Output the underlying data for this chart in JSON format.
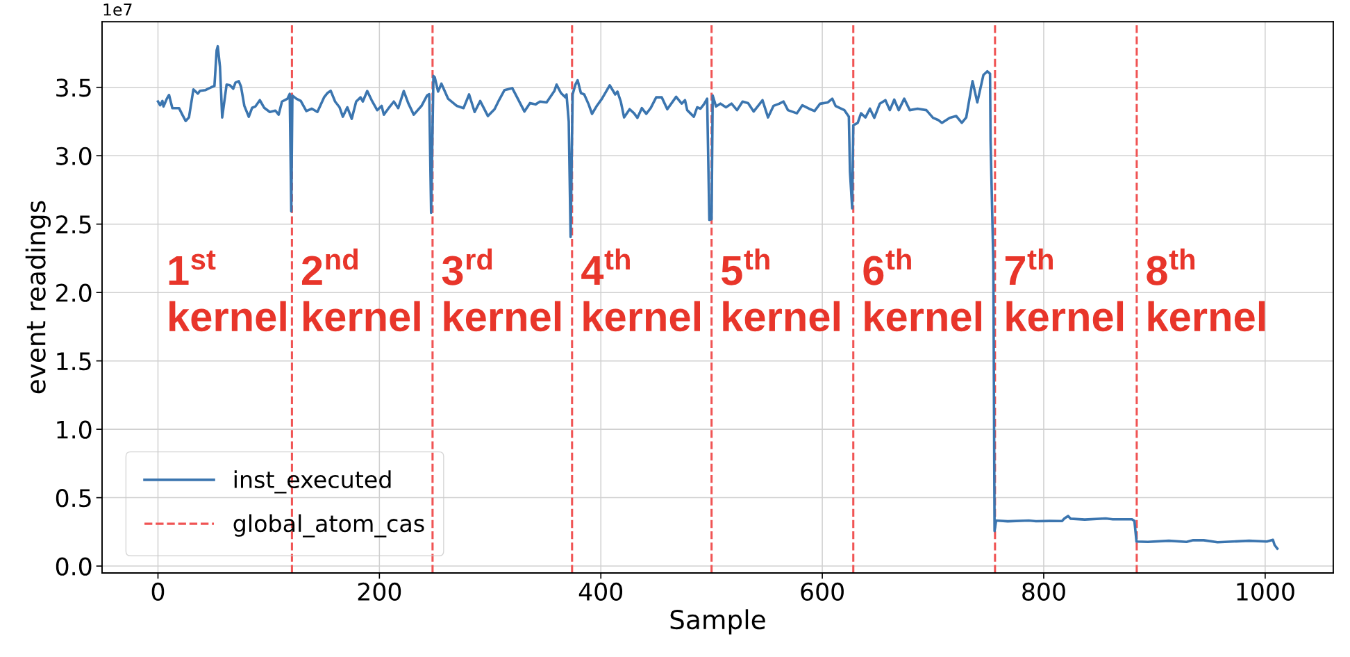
{
  "chart_data": {
    "type": "line",
    "xlabel": "Sample",
    "ylabel": "event readings",
    "xlim": [
      -50.5,
      1061.5
    ],
    "ylim": [
      -0.05,
      3.98
    ],
    "xticks": [
      0,
      200,
      400,
      600,
      800,
      1000
    ],
    "yticks": [
      {
        "value": 0,
        "label": "0.0"
      },
      0.5,
      {
        "value": 1,
        "label": "1.0"
      },
      1.5,
      {
        "value": 2,
        "label": "2.0"
      },
      2.5,
      {
        "value": 3,
        "label": "3.0"
      },
      3.5
    ],
    "grid": true,
    "legend": "bottom left",
    "line_style": "solid",
    "marker": "none",
    "series": [
      {
        "name": "inst_executed",
        "color": "#3b75af",
        "x": [
          0,
          2,
          4,
          5,
          8,
          10,
          13,
          19,
          22,
          25,
          28,
          32,
          36,
          38,
          43,
          48,
          51,
          53,
          54,
          56,
          58,
          62,
          65,
          68,
          70,
          73,
          75,
          78,
          82,
          85,
          88,
          92,
          96,
          101,
          106,
          109,
          112,
          117,
          119,
          120.4,
          121.4,
          125,
          129,
          134,
          139,
          144,
          150,
          153,
          156,
          160,
          164,
          167,
          171,
          175,
          179,
          183,
          185,
          189,
          193,
          198,
          202,
          204,
          208,
          213,
          217,
          222,
          226,
          231,
          238,
          243,
          245,
          246.7,
          248.8,
          250,
          253,
          256,
          262,
          270,
          276,
          281,
          286,
          291,
          298,
          304,
          308,
          313,
          320,
          325,
          331,
          336,
          341,
          345,
          351,
          358,
          360,
          364,
          368,
          369,
          371,
          372.7,
          374.5,
          377,
          379,
          382,
          385,
          389,
          392,
          396,
          401,
          408,
          413,
          415,
          418,
          421,
          426,
          430,
          433,
          437,
          441,
          445,
          450,
          455,
          460,
          468,
          473,
          476,
          478,
          484,
          487,
          490,
          493,
          496,
          498,
          500,
          501,
          504,
          508,
          513,
          518,
          523,
          528,
          533,
          538,
          546,
          551,
          556,
          561,
          565,
          569,
          577,
          582,
          588,
          593,
          598,
          605,
          609,
          612,
          616,
          620,
          624,
          625,
          627,
          628,
          632,
          635,
          639,
          643,
          647,
          652,
          657,
          661,
          665,
          669,
          674,
          679,
          686,
          694,
          700,
          705,
          708,
          715,
          721,
          726,
          730,
          735.7,
          740,
          745.5,
          749,
          751.5,
          752,
          754.5,
          755.6,
          757,
          767.5,
          786.5,
          793,
          805.4,
          816.5,
          818.7,
          822,
          824.4,
          837,
          856,
          862.3,
          879.7,
          881.9,
          883.8,
          894,
          913,
          929,
          935,
          944.5,
          957,
          985.5,
          1001.5,
          1007,
          1008.5,
          1011
        ],
        "values": [
          3.396,
          3.369,
          3.4,
          3.36,
          3.417,
          3.444,
          3.348,
          3.348,
          3.3,
          3.254,
          3.28,
          3.485,
          3.454,
          3.475,
          3.48,
          3.5,
          3.51,
          3.77,
          3.8,
          3.65,
          3.28,
          3.52,
          3.515,
          3.49,
          3.535,
          3.545,
          3.505,
          3.365,
          3.285,
          3.35,
          3.36,
          3.406,
          3.35,
          3.32,
          3.33,
          3.3,
          3.396,
          3.417,
          3.452,
          2.594,
          3.44,
          3.417,
          3.4,
          3.327,
          3.344,
          3.32,
          3.427,
          3.458,
          3.475,
          3.396,
          3.354,
          3.285,
          3.354,
          3.27,
          3.396,
          3.427,
          3.396,
          3.473,
          3.406,
          3.333,
          3.364,
          3.3,
          3.344,
          3.396,
          3.348,
          3.473,
          3.385,
          3.3,
          3.364,
          3.44,
          3.45,
          2.583,
          3.583,
          3.573,
          3.469,
          3.527,
          3.417,
          3.364,
          3.348,
          3.448,
          3.32,
          3.4,
          3.29,
          3.34,
          3.406,
          3.48,
          3.494,
          3.417,
          3.323,
          3.385,
          3.375,
          3.396,
          3.39,
          3.473,
          3.52,
          3.458,
          3.427,
          3.448,
          3.25,
          2.406,
          3.448,
          3.52,
          3.552,
          3.458,
          3.448,
          3.375,
          3.306,
          3.36,
          3.417,
          3.515,
          3.448,
          3.469,
          3.396,
          3.28,
          3.34,
          3.31,
          3.277,
          3.348,
          3.306,
          3.348,
          3.427,
          3.427,
          3.34,
          3.431,
          3.381,
          3.406,
          3.333,
          3.285,
          3.354,
          3.344,
          3.375,
          3.417,
          2.531,
          2.535,
          3.44,
          3.36,
          3.381,
          3.354,
          3.381,
          3.333,
          3.396,
          3.385,
          3.323,
          3.406,
          3.28,
          3.365,
          3.38,
          3.396,
          3.333,
          3.31,
          3.369,
          3.344,
          3.327,
          3.38,
          3.39,
          3.417,
          3.364,
          3.348,
          3.333,
          3.285,
          2.885,
          2.615,
          3.223,
          3.24,
          3.31,
          3.28,
          3.344,
          3.277,
          3.381,
          3.406,
          3.333,
          3.41,
          3.333,
          3.417,
          3.333,
          3.344,
          3.333,
          3.277,
          3.26,
          3.24,
          3.277,
          3.29,
          3.24,
          3.28,
          3.545,
          3.39,
          3.59,
          3.617,
          3.6,
          3.11,
          2.21,
          0.256,
          0.333,
          0.327,
          0.333,
          0.328,
          0.33,
          0.329,
          0.348,
          0.366,
          0.346,
          0.34,
          0.348,
          0.342,
          0.342,
          0.33,
          0.179,
          0.177,
          0.185,
          0.177,
          0.189,
          0.189,
          0.174,
          0.185,
          0.179,
          0.192,
          0.154,
          0.128
        ]
      }
    ],
    "ref_lines": [
      {
        "axis": "x",
        "value": 121,
        "label": "global_atom_cas",
        "color": "#f05454",
        "line_style": "dashed"
      },
      {
        "axis": "x",
        "value": 248,
        "color": "#f05454",
        "line_style": "dashed"
      },
      {
        "axis": "x",
        "value": 374,
        "color": "#f05454",
        "line_style": "dashed"
      },
      {
        "axis": "x",
        "value": 500,
        "color": "#f05454",
        "line_style": "dashed"
      },
      {
        "axis": "x",
        "value": 628,
        "color": "#f05454",
        "line_style": "dashed"
      },
      {
        "axis": "x",
        "value": 756,
        "color": "#f05454",
        "line_style": "dashed"
      },
      {
        "axis": "x",
        "value": 884,
        "color": "#f05454",
        "line_style": "dashed"
      }
    ],
    "annotations": [
      "1e7",
      "1$^{st}$\nkernel",
      "2$^{nd}$\nkernel",
      "3$^{rd}$\nkernel",
      "4$^{th}$\nkernel",
      "5$^{th}$\nkernel",
      "6$^{th}$\nkernel",
      "7$^{th}$\nkernel",
      "8$^{th}$\nkernel"
    ]
  }
}
